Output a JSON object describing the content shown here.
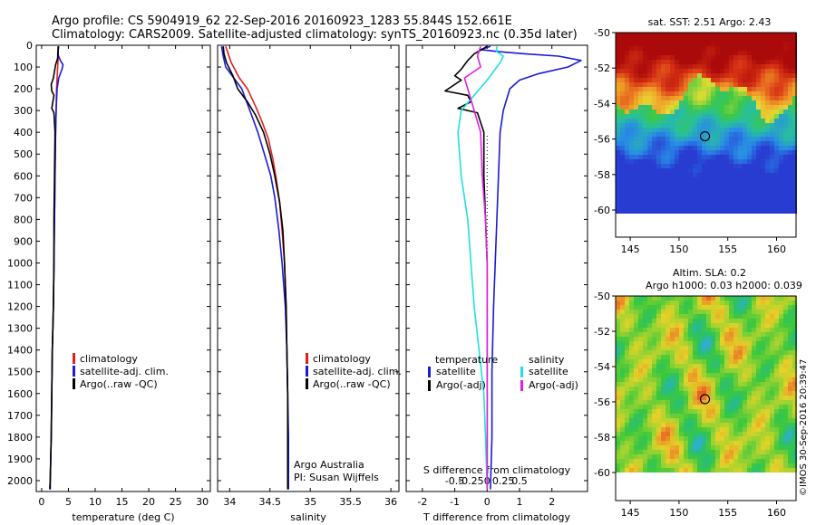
{
  "header": {
    "title1": "Argo profile: CS 5904919_62 22-Sep-2016 20160923_1283 55.844S 152.661E",
    "title2": "Climatology: CARS2009. Satellite-adjusted climatology: synTS_20160923.nc (0.35d later)"
  },
  "colors": {
    "red": "#e02020",
    "blue": "#1a1ad6",
    "black": "#000000",
    "cyan": "#20e0e0",
    "magenta": "#e020e0"
  },
  "chart_data": [
    {
      "type": "line",
      "id": "temperature",
      "xlabel": "temperature (deg C)",
      "ylabel": "",
      "xlim": [
        -1,
        31.5
      ],
      "ylim": [
        2050,
        0
      ],
      "xticks": [
        0,
        5,
        10,
        15,
        20,
        25,
        30
      ],
      "yticks": [
        0,
        100,
        200,
        300,
        400,
        500,
        600,
        700,
        800,
        900,
        1000,
        1100,
        1200,
        1300,
        1400,
        1500,
        1600,
        1700,
        1800,
        1900,
        2000
      ],
      "legend": [
        "climatology",
        "satellite-adj. clim.",
        "Argo(..raw -QC)"
      ],
      "series": [
        {
          "name": "climatology",
          "color": "red",
          "points": [
            [
              3.1,
              5
            ],
            [
              3.1,
              50
            ],
            [
              3.0,
              100
            ],
            [
              2.9,
              150
            ],
            [
              2.8,
              200
            ],
            [
              2.7,
              300
            ],
            [
              2.6,
              400
            ],
            [
              2.5,
              600
            ],
            [
              2.4,
              800
            ],
            [
              2.3,
              1000
            ],
            [
              2.2,
              1200
            ],
            [
              2.0,
              1400
            ],
            [
              1.9,
              1600
            ],
            [
              1.8,
              1800
            ],
            [
              1.6,
              2000
            ],
            [
              1.5,
              2040
            ]
          ]
        },
        {
          "name": "satellite-adj. clim.",
          "color": "blue",
          "points": [
            [
              3.2,
              5
            ],
            [
              3.0,
              40
            ],
            [
              3.5,
              70
            ],
            [
              4.0,
              90
            ],
            [
              3.8,
              110
            ],
            [
              3.2,
              150
            ],
            [
              2.9,
              200
            ],
            [
              2.7,
              300
            ],
            [
              2.6,
              400
            ],
            [
              2.5,
              600
            ],
            [
              2.4,
              800
            ],
            [
              2.3,
              1000
            ],
            [
              2.2,
              1200
            ],
            [
              2.0,
              1400
            ],
            [
              1.9,
              1600
            ],
            [
              1.8,
              1800
            ],
            [
              1.6,
              2000
            ],
            [
              1.5,
              2040
            ]
          ]
        },
        {
          "name": "Argo(..raw -QC)",
          "color": "black",
          "points": [
            [
              3.1,
              5
            ],
            [
              3.0,
              60
            ],
            [
              2.6,
              90
            ],
            [
              2.2,
              150
            ],
            [
              1.8,
              180
            ],
            [
              1.9,
              210
            ],
            [
              2.3,
              230
            ],
            [
              2.1,
              260
            ],
            [
              1.9,
              290
            ],
            [
              2.3,
              310
            ],
            [
              2.5,
              400
            ],
            [
              2.4,
              600
            ],
            [
              2.3,
              800
            ],
            [
              2.3,
              1000
            ],
            [
              2.2,
              1200
            ],
            [
              2.0,
              1400
            ],
            [
              1.9,
              1600
            ],
            [
              1.8,
              1800
            ],
            [
              1.6,
              2000
            ],
            [
              1.6,
              2040
            ]
          ]
        }
      ]
    },
    {
      "type": "line",
      "id": "salinity",
      "xlabel": "salinity",
      "ylabel": "",
      "xlim": [
        33.85,
        36.1
      ],
      "ylim": [
        2050,
        0
      ],
      "xticks": [
        34,
        34.5,
        35,
        35.5,
        36
      ],
      "xticklabels": [
        "34",
        "34.5",
        "35",
        "35.5",
        "36"
      ],
      "legend": [
        "climatology",
        "satellite-adj. clim.",
        "Argo(..raw -QC)"
      ],
      "annotations": [
        "Argo Australia",
        "PI: Susan Wijffels"
      ],
      "series": [
        {
          "name": "climatology",
          "color": "red",
          "points": [
            [
              33.95,
              5
            ],
            [
              34.02,
              80
            ],
            [
              34.12,
              150
            ],
            [
              34.22,
              200
            ],
            [
              34.32,
              280
            ],
            [
              34.4,
              350
            ],
            [
              34.48,
              430
            ],
            [
              34.54,
              530
            ],
            [
              34.58,
              620
            ],
            [
              34.62,
              720
            ],
            [
              34.65,
              850
            ],
            [
              34.68,
              1000
            ],
            [
              34.7,
              1200
            ],
            [
              34.71,
              1400
            ],
            [
              34.72,
              1600
            ],
            [
              34.72,
              1800
            ],
            [
              34.72,
              2000
            ],
            [
              34.72,
              2040
            ]
          ]
        },
        {
          "name": "satellite-adj. clim.",
          "color": "blue",
          "points": [
            [
              33.9,
              5
            ],
            [
              33.92,
              50
            ],
            [
              33.95,
              100
            ],
            [
              34.05,
              150
            ],
            [
              34.15,
              200
            ],
            [
              34.25,
              300
            ],
            [
              34.35,
              400
            ],
            [
              34.43,
              500
            ],
            [
              34.51,
              600
            ],
            [
              34.56,
              700
            ],
            [
              34.61,
              850
            ],
            [
              34.65,
              1000
            ],
            [
              34.69,
              1200
            ],
            [
              34.71,
              1400
            ],
            [
              34.72,
              1600
            ],
            [
              34.73,
              1800
            ],
            [
              34.73,
              2000
            ],
            [
              34.73,
              2040
            ]
          ]
        },
        {
          "name": "Argo(..raw -QC)",
          "color": "black",
          "points": [
            [
              33.92,
              5
            ],
            [
              33.93,
              40
            ],
            [
              33.96,
              80
            ],
            [
              34.04,
              140
            ],
            [
              34.1,
              200
            ],
            [
              34.22,
              260
            ],
            [
              34.32,
              320
            ],
            [
              34.42,
              400
            ],
            [
              34.5,
              500
            ],
            [
              34.56,
              600
            ],
            [
              34.62,
              720
            ],
            [
              34.66,
              850
            ],
            [
              34.68,
              1000
            ],
            [
              34.7,
              1200
            ],
            [
              34.71,
              1400
            ],
            [
              34.72,
              1600
            ],
            [
              34.72,
              1800
            ],
            [
              34.72,
              2000
            ],
            [
              34.72,
              2040
            ]
          ]
        }
      ]
    },
    {
      "type": "line",
      "id": "difference",
      "xlabel": "T difference from climatology",
      "xlabel2": "S difference from climatology",
      "xlim": [
        -2.5,
        3.1
      ],
      "ylim": [
        2050,
        0
      ],
      "xticks": [
        -2,
        -1,
        0,
        1,
        2
      ],
      "xticklabels": [
        "-2",
        "-1",
        "0",
        "1",
        "2"
      ],
      "s_xticklabels": [
        "-0.5",
        "-0.25",
        "0",
        "0.25",
        "0.5"
      ],
      "legend_headers": [
        "temperature",
        "salinity"
      ],
      "legend": [
        {
          "name": "satellite",
          "group": "temperature",
          "color": "blue"
        },
        {
          "name": "Argo(-adj)",
          "group": "temperature",
          "color": "black"
        },
        {
          "name": "satellite",
          "group": "salinity",
          "color": "cyan"
        },
        {
          "name": "Argo(-adj)",
          "group": "salinity",
          "color": "magenta"
        }
      ],
      "series": [
        {
          "name": "T satellite",
          "color": "blue",
          "points": [
            [
              0.1,
              5
            ],
            [
              -0.2,
              20
            ],
            [
              0.4,
              30
            ],
            [
              1.2,
              40
            ],
            [
              2.2,
              50
            ],
            [
              2.9,
              70
            ],
            [
              2.5,
              100
            ],
            [
              1.6,
              130
            ],
            [
              1.0,
              160
            ],
            [
              0.7,
              200
            ],
            [
              0.5,
              300
            ],
            [
              0.4,
              400
            ],
            [
              0.35,
              600
            ],
            [
              0.3,
              800
            ],
            [
              0.25,
              1000
            ],
            [
              0.2,
              1200
            ],
            [
              0.15,
              1500
            ],
            [
              0.15,
              1800
            ],
            [
              0.1,
              2040
            ]
          ]
        },
        {
          "name": "T Argo(-adj)",
          "color": "black",
          "points": [
            [
              0.0,
              5
            ],
            [
              -0.4,
              40
            ],
            [
              -0.6,
              70
            ],
            [
              -0.8,
              110
            ],
            [
              -1.0,
              140
            ],
            [
              -0.8,
              160
            ],
            [
              -1.3,
              210
            ],
            [
              -0.6,
              230
            ],
            [
              -0.5,
              260
            ],
            [
              -0.9,
              290
            ],
            [
              -0.3,
              310
            ],
            [
              -0.1,
              400
            ],
            [
              -0.1,
              600
            ],
            [
              -0.05,
              800
            ],
            [
              0.0,
              1000
            ],
            [
              0.0,
              1500
            ],
            [
              0.0,
              2040
            ]
          ]
        },
        {
          "name": "S satellite",
          "color": "cyan",
          "points": [
            [
              0.3,
              5
            ],
            [
              0.3,
              30
            ],
            [
              0.5,
              50
            ],
            [
              0.4,
              80
            ],
            [
              0.2,
              120
            ],
            [
              0.0,
              160
            ],
            [
              -0.4,
              230
            ],
            [
              -0.8,
              300
            ],
            [
              -0.9,
              400
            ],
            [
              -0.8,
              600
            ],
            [
              -0.6,
              800
            ],
            [
              -0.5,
              1000
            ],
            [
              -0.4,
              1200
            ],
            [
              -0.25,
              1400
            ],
            [
              -0.1,
              1600
            ],
            [
              -0.05,
              1800
            ],
            [
              0.0,
              2040
            ]
          ]
        },
        {
          "name": "S Argo(-adj)",
          "color": "magenta",
          "points": [
            [
              -0.2,
              5
            ],
            [
              -0.3,
              50
            ],
            [
              -0.2,
              100
            ],
            [
              -0.7,
              150
            ],
            [
              -0.6,
              200
            ],
            [
              -0.4,
              300
            ],
            [
              -0.2,
              400
            ],
            [
              -0.15,
              600
            ],
            [
              -0.05,
              800
            ],
            [
              0.0,
              1000
            ],
            [
              0.0,
              1500
            ],
            [
              0.0,
              2040
            ]
          ]
        }
      ]
    }
  ],
  "maps": [
    {
      "id": "sst-map",
      "title": "sat. SST: 2.51 Argo: 2.43",
      "xticks": [
        145,
        150,
        155,
        160
      ],
      "yticks": [
        -50,
        -52,
        -54,
        -56,
        -58,
        -60
      ],
      "xlim": [
        143.5,
        162
      ],
      "ylim": [
        -60,
        -50
      ],
      "marker": {
        "lon": 152.661,
        "lat": -55.844
      }
    },
    {
      "id": "sla-map",
      "title": "Altim. SLA: 0.2",
      "subtitle": "Argo h1000: 0.03 h2000: 0.039",
      "xticks": [
        145,
        150,
        155,
        160
      ],
      "yticks": [
        -50,
        -52,
        -54,
        -56,
        -58,
        -60
      ],
      "xlim": [
        143.5,
        162
      ],
      "ylim": [
        -60,
        -50
      ],
      "marker": {
        "lon": 152.661,
        "lat": -55.844
      }
    }
  ],
  "credit": "©IMOS 30-Sep-2016 20:39:47"
}
